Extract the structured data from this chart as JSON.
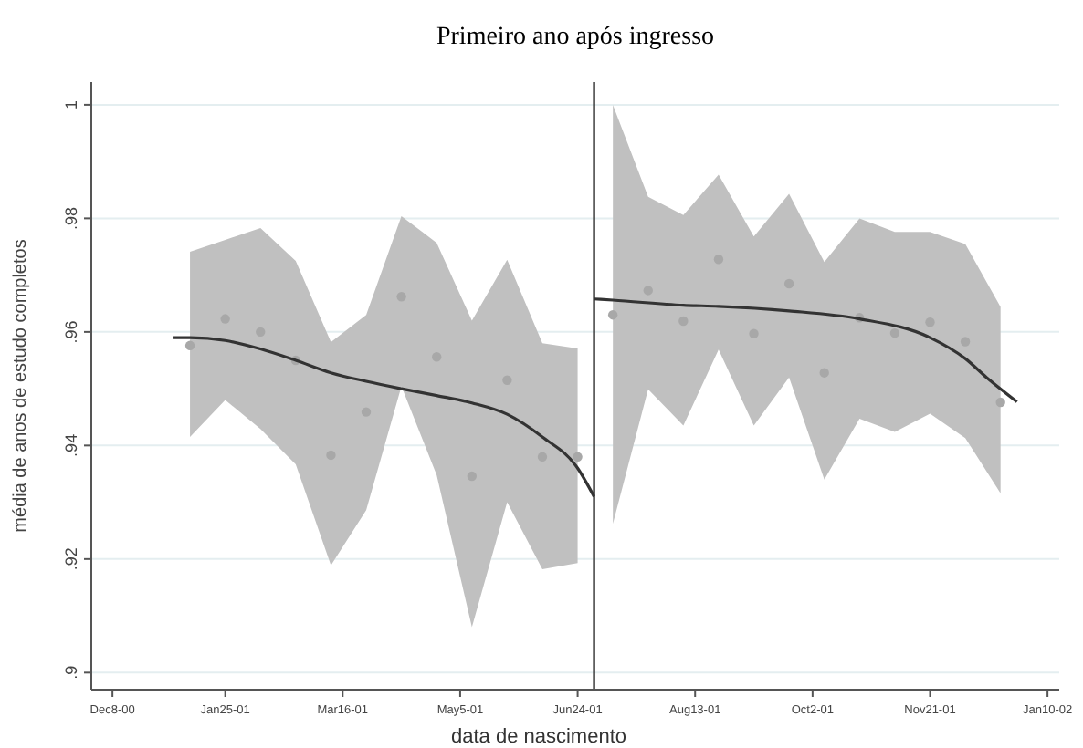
{
  "chart_data": {
    "type": "scatter",
    "title": "Primeiro ano após ingresso",
    "xlabel": "data de nascimento",
    "ylabel": "média de anos de estudo completos",
    "xlim": [
      "2000-11-29",
      "2002-01-15"
    ],
    "ylim": [
      0.897,
      1.004
    ],
    "xticks": [
      {
        "value": "2000-12-08",
        "label": "Dec8-00"
      },
      {
        "value": "2001-01-25",
        "label": "Jan25-01"
      },
      {
        "value": "2001-03-16",
        "label": "Mar16-01"
      },
      {
        "value": "2001-05-05",
        "label": "May5-01"
      },
      {
        "value": "2001-06-24",
        "label": "Jun24-01"
      },
      {
        "value": "2001-08-13",
        "label": "Aug13-01"
      },
      {
        "value": "2001-10-02",
        "label": "Oct2-01"
      },
      {
        "value": "2001-11-21",
        "label": "Nov21-01"
      },
      {
        "value": "2002-01-10",
        "label": "Jan10-02"
      }
    ],
    "yticks": [
      {
        "value": 0.9,
        "label": ".9"
      },
      {
        "value": 0.92,
        "label": ".92"
      },
      {
        "value": 0.94,
        "label": ".94"
      },
      {
        "value": 0.96,
        "label": ".96"
      },
      {
        "value": 0.98,
        "label": ".98"
      },
      1
    ],
    "grid": "y",
    "marker": "circle",
    "ref_lines": [
      {
        "axis": "x",
        "value": "2001-07-01",
        "color": "#333333"
      }
    ],
    "series": [
      {
        "color": "#a8a8a8",
        "x": [
          "2001-01-10",
          "2001-01-25",
          "2001-02-09",
          "2001-02-24",
          "2001-03-11",
          "2001-03-26",
          "2001-04-10",
          "2001-04-25",
          "2001-05-10",
          "2001-05-25",
          "2001-06-09",
          "2001-06-24"
        ],
        "values": [
          0.9576,
          0.9623,
          0.96,
          0.955,
          0.9383,
          0.9459,
          0.9662,
          0.9556,
          0.9346,
          0.9515,
          0.938,
          0.938
        ],
        "upper": [
          0.9741,
          0.9762,
          0.9783,
          0.9725,
          0.9582,
          0.963,
          0.9804,
          0.9757,
          0.962,
          0.9727,
          0.958,
          0.9571
        ],
        "lower": [
          0.9415,
          0.948,
          0.9429,
          0.9367,
          0.9189,
          0.9286,
          0.9504,
          0.9348,
          0.908,
          0.93,
          0.9182,
          0.9193
        ]
      },
      {
        "color": "#a8a8a8",
        "x": [
          "2001-07-09",
          "2001-07-24",
          "2001-08-08",
          "2001-08-23",
          "2001-09-07",
          "2001-09-22",
          "2001-10-07",
          "2001-10-22",
          "2001-11-06",
          "2001-11-21",
          "2001-12-06",
          "2001-12-21"
        ],
        "values": [
          0.963,
          0.9673,
          0.9619,
          0.9728,
          0.9597,
          0.9685,
          0.9528,
          0.9625,
          0.9598,
          0.9617,
          0.9583,
          0.9476
        ],
        "upper": [
          1.0,
          0.9838,
          0.9806,
          0.9877,
          0.9768,
          0.9843,
          0.9723,
          0.98,
          0.9776,
          0.9776,
          0.9755,
          0.9644
        ],
        "lower": [
          0.9262,
          0.9499,
          0.9435,
          0.9569,
          0.9435,
          0.952,
          0.934,
          0.9447,
          0.9424,
          0.9456,
          0.9413,
          0.9316
        ]
      },
      {
        "type": "line",
        "color": "#333333",
        "marker": "none",
        "x": [
          "2001-01-03",
          "2001-01-10",
          "2001-01-25",
          "2001-02-09",
          "2001-02-24",
          "2001-03-11",
          "2001-03-26",
          "2001-04-10",
          "2001-04-25",
          "2001-05-10",
          "2001-05-25",
          "2001-06-09",
          "2001-06-24",
          "2001-07-01"
        ],
        "values": [
          0.959,
          0.959,
          0.9585,
          0.957,
          0.955,
          0.9528,
          0.9513,
          0.95,
          0.9488,
          0.9475,
          0.9455,
          0.9415,
          0.936,
          0.931
        ]
      },
      {
        "type": "line",
        "color": "#333333",
        "marker": "none",
        "x": [
          "2001-07-01",
          "2001-07-09",
          "2001-08-08",
          "2001-08-23",
          "2001-09-22",
          "2001-10-22",
          "2001-11-21",
          "2001-12-06",
          "2001-12-15",
          "2001-12-28"
        ],
        "values": [
          0.9658,
          0.9656,
          0.9647,
          0.9645,
          0.9637,
          0.9623,
          0.959,
          0.9553,
          0.952,
          0.9477
        ]
      }
    ]
  }
}
